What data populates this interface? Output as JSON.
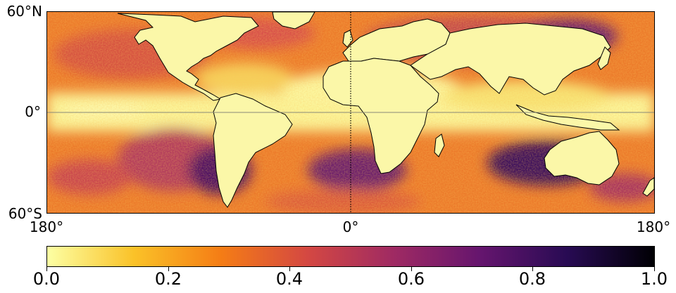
{
  "map": {
    "lat_labels": [
      "60°N",
      "0°",
      "60°S"
    ],
    "lon_labels": [
      "180°",
      "0°",
      "180°"
    ],
    "extent": {
      "lon": [
        -180,
        180
      ],
      "lat": [
        -60,
        60
      ]
    }
  },
  "colorbar": {
    "colormap": "inferno",
    "range": [
      0.0,
      1.0
    ],
    "tick_labels": [
      "0.0",
      "0.2",
      "0.4",
      "0.6",
      "0.8",
      "1.0"
    ],
    "stops": [
      "#fcffa4",
      "#fac228",
      "#f57d15",
      "#d44842",
      "#9f2a63",
      "#65156e",
      "#280b53",
      "#000004"
    ]
  }
}
